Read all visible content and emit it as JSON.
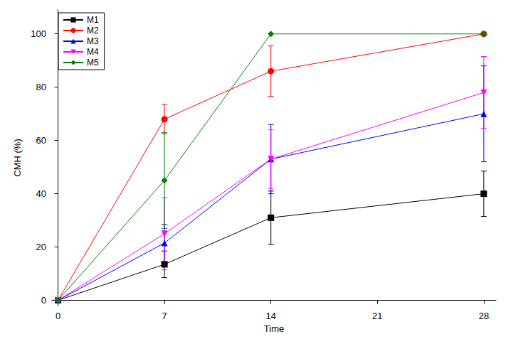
{
  "chart_data": {
    "type": "line",
    "x_label": "Time",
    "y_label": "CMH (%)",
    "xlim": [
      -0.4,
      28.8
    ],
    "xticks": [
      0,
      7,
      14,
      21,
      28
    ],
    "ylim": [
      -2,
      109
    ],
    "yticks": [
      0,
      20,
      40,
      60,
      80,
      100
    ],
    "grid": false,
    "legend": "upper left",
    "x": [
      0,
      7,
      14,
      28
    ],
    "series": [
      {
        "name": "M1",
        "color": "#000000",
        "marker": "square",
        "values": [
          0,
          13.5,
          31,
          40
        ],
        "errors": [
          0,
          5,
          10,
          8.5
        ]
      },
      {
        "name": "M2",
        "color": "#ff0000",
        "marker": "circle",
        "values": [
          0,
          68,
          86,
          100
        ],
        "errors": [
          0,
          5.5,
          9.5,
          0
        ]
      },
      {
        "name": "M3",
        "color": "#0000ff",
        "marker": "triangle",
        "values": [
          0,
          21.5,
          53,
          70
        ],
        "errors": [
          0,
          7,
          13,
          18
        ]
      },
      {
        "name": "M4",
        "color": "#ff00ff",
        "marker": "triangle_down",
        "values": [
          0,
          25,
          53,
          78
        ],
        "errors": [
          0,
          13.5,
          11,
          13.5
        ]
      },
      {
        "name": "M5",
        "color": "#008000",
        "marker": "diamond",
        "values": [
          0,
          45,
          100,
          100
        ],
        "errors": [
          0,
          18,
          0,
          0
        ]
      }
    ]
  }
}
